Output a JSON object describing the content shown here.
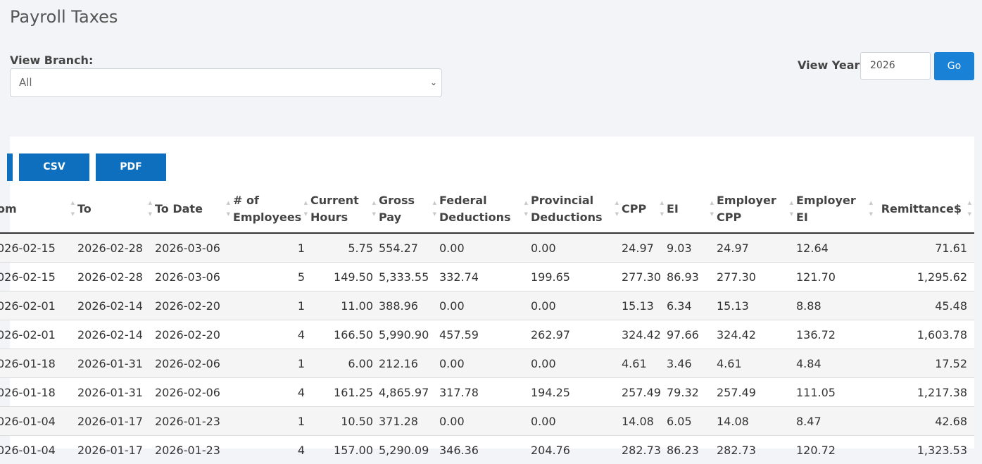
{
  "page": {
    "title": "Payroll Taxes",
    "branch_label": "View Branch:",
    "branch_value": "All",
    "year_label": "View Year:",
    "year_value": "2026",
    "go_label": "Go"
  },
  "export": {
    "csv_label": "CSV",
    "pdf_label": "PDF"
  },
  "table": {
    "headers": [
      "om",
      "To",
      "To Date",
      "# of Employees",
      "Current Hours",
      "Gross Pay",
      "Federal Deductions",
      "Provincial Deductions",
      "CPP",
      "EI",
      "Employer CPP",
      "Employer EI",
      "Remittance$"
    ],
    "rows": [
      [
        "026-02-15",
        "2026-02-28",
        "2026-03-06",
        "1",
        "5.75",
        "554.27",
        "0.00",
        "0.00",
        "24.97",
        "9.03",
        "24.97",
        "12.64",
        "71.61"
      ],
      [
        "026-02-15",
        "2026-02-28",
        "2026-03-06",
        "5",
        "149.50",
        "5,333.55",
        "332.74",
        "199.65",
        "277.30",
        "86.93",
        "277.30",
        "121.70",
        "1,295.62"
      ],
      [
        "026-02-01",
        "2026-02-14",
        "2026-02-20",
        "1",
        "11.00",
        "388.96",
        "0.00",
        "0.00",
        "15.13",
        "6.34",
        "15.13",
        "8.88",
        "45.48"
      ],
      [
        "026-02-01",
        "2026-02-14",
        "2026-02-20",
        "4",
        "166.50",
        "5,990.90",
        "457.59",
        "262.97",
        "324.42",
        "97.66",
        "324.42",
        "136.72",
        "1,603.78"
      ],
      [
        "026-01-18",
        "2026-01-31",
        "2026-02-06",
        "1",
        "6.00",
        "212.16",
        "0.00",
        "0.00",
        "4.61",
        "3.46",
        "4.61",
        "4.84",
        "17.52"
      ],
      [
        "026-01-18",
        "2026-01-31",
        "2026-02-06",
        "4",
        "161.25",
        "4,865.97",
        "317.78",
        "194.25",
        "257.49",
        "79.32",
        "257.49",
        "111.05",
        "1,217.38"
      ],
      [
        "026-01-04",
        "2026-01-17",
        "2026-01-23",
        "1",
        "10.50",
        "371.28",
        "0.00",
        "0.00",
        "14.08",
        "6.05",
        "14.08",
        "8.47",
        "42.68"
      ],
      [
        "026-01-04",
        "2026-01-17",
        "2026-01-23",
        "4",
        "157.00",
        "5,290.09",
        "346.36",
        "204.76",
        "282.73",
        "86.23",
        "282.73",
        "120.72",
        "1,323.53"
      ]
    ]
  }
}
